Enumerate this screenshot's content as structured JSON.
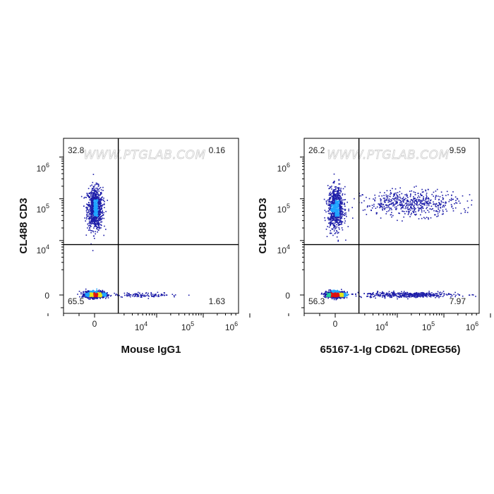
{
  "watermark": "WWW.PTGLAB.COM",
  "colors": {
    "density_low": "#1c1ca8",
    "density_mid1": "#1fa4ff",
    "density_mid2": "#22d29a",
    "density_mid3": "#e6e619",
    "density_high": "#e01010"
  },
  "chart_data": [
    {
      "type": "scatter",
      "ylabel": "CL488 CD3",
      "xlabel": "Mouse IgG1",
      "x_ticks": [
        "0",
        "10^4",
        "10^5",
        "10^6"
      ],
      "y_ticks": [
        "0",
        "10^4",
        "10^5",
        "10^6"
      ],
      "gate_x": 1500,
      "gate_y": 8000,
      "quadrants": {
        "upper_left": "32.8",
        "upper_right": "0.16",
        "lower_left": "65.5",
        "lower_right": "1.63"
      },
      "populations": [
        {
          "name": "",
          "x_center": 0,
          "y_center": 60000,
          "x_spread": 250,
          "y_spread": 0.25,
          "count": 900
        },
        {
          "name": "",
          "x_center": 0,
          "y_center": 80,
          "x_spread": 300,
          "y_spread": 120,
          "count": 1500
        },
        {
          "name": "",
          "x_center": 6000,
          "y_center": 50,
          "x_spread": 0.35,
          "y_spread": 90,
          "count": 110
        }
      ]
    },
    {
      "type": "scatter",
      "ylabel": "CL488 CD3",
      "xlabel": "65167-1-Ig CD62L (DREG56)",
      "x_ticks": [
        "0",
        "10^4",
        "10^5",
        "10^6"
      ],
      "y_ticks": [
        "0",
        "10^4",
        "10^5",
        "10^6"
      ],
      "gate_x": 1500,
      "gate_y": 8000,
      "quadrants": {
        "upper_left": "26.2",
        "upper_right": "9.59",
        "lower_left": "56.3",
        "lower_right": "7.97"
      },
      "populations": [
        {
          "name": "",
          "x_center": 0,
          "y_center": 60000,
          "x_spread": 250,
          "y_spread": 0.25,
          "count": 800
        },
        {
          "name": "",
          "x_center": 20000,
          "y_center": 80000,
          "x_spread": 0.5,
          "y_spread": 0.15,
          "count": 550
        },
        {
          "name": "",
          "x_center": 0,
          "y_center": 80,
          "x_spread": 300,
          "y_spread": 120,
          "count": 1300
        },
        {
          "name": "",
          "x_center": 15000,
          "y_center": 60,
          "x_spread": 0.55,
          "y_spread": 110,
          "count": 420
        }
      ]
    }
  ]
}
